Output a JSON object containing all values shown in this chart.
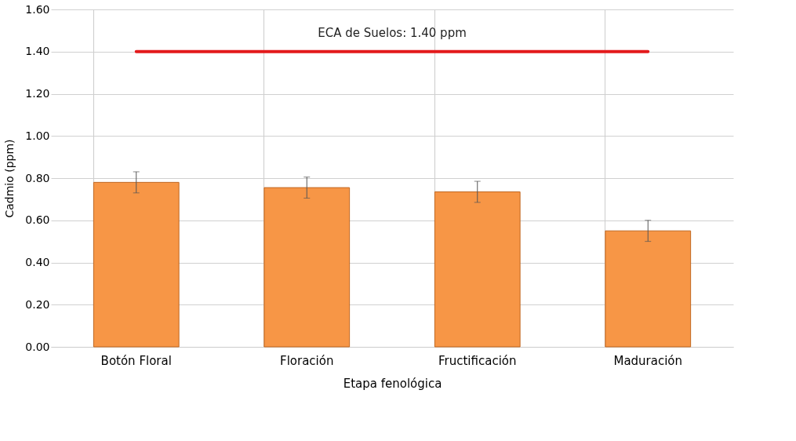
{
  "chart_data": {
    "type": "bar",
    "xlabel": "Etapa fenológica",
    "ylabel": "Cadmio (ppm)",
    "categories": [
      "Botón Floral",
      "Floración",
      "Fructificación",
      "Maduración"
    ],
    "values": [
      0.78,
      0.755,
      0.735,
      0.55
    ],
    "errors": [
      0.05,
      0.05,
      0.05,
      0.05
    ],
    "color": "#f79646",
    "ylim": [
      0,
      1.6
    ],
    "yticks": [
      {
        "value": 0,
        "label": "0.00"
      },
      {
        "value": 0.2,
        "label": "0.20"
      },
      {
        "value": 0.4,
        "label": "0.40"
      },
      {
        "value": 0.6,
        "label": "0.60"
      },
      {
        "value": 0.8,
        "label": "0.80"
      },
      {
        "value": 1.0,
        "label": "1.00"
      },
      {
        "value": 1.2,
        "label": "1.20"
      },
      {
        "value": 1.4,
        "label": "1.40"
      },
      {
        "value": 1.6,
        "label": "1.60"
      }
    ],
    "grid": true,
    "ref_lines": [
      {
        "axis": "y",
        "value": 1.4,
        "label": "ECA de Suelos: 1.40 ppm",
        "color": "#e31a1c"
      }
    ]
  }
}
